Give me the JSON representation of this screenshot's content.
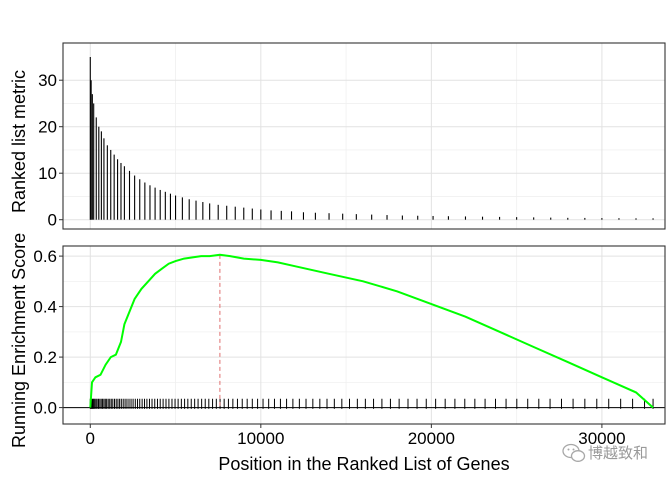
{
  "chart_data": {
    "type": "gsea",
    "xlabel": "Position in the Ranked List of Genes",
    "ylabel_top": "Ranked list metric",
    "ylabel_bottom": "Running Enrichment Score",
    "xlim": [
      -1600,
      33700
    ],
    "x_ticks": [
      0,
      10000,
      20000,
      30000
    ],
    "x_tick_labels": [
      "0",
      "10000",
      "20000",
      "30000"
    ],
    "grid": true,
    "legend": "none",
    "panels": [
      {
        "id": "ranked-metric",
        "type": "bar",
        "ylabel": "Ranked list metric",
        "ylim": [
          -2,
          38
        ],
        "y_ticks": [
          0,
          10,
          20,
          30
        ],
        "y_tick_labels": [
          "0",
          "10",
          "20",
          "30"
        ],
        "color": "#000000",
        "series": [
          {
            "x": [
              0,
              50,
              120,
              200,
              350,
              500,
              650,
              800,
              1000,
              1200,
              1400,
              1600,
              1800,
              2000,
              2300,
              2600,
              2900,
              3200,
              3500,
              3800,
              4100,
              4400,
              4700,
              5000,
              5400,
              5800,
              6200,
              6600,
              7000,
              7500,
              8000,
              8500,
              9000,
              9500,
              10000,
              10600,
              11200,
              11800,
              12500,
              13200,
              14000,
              14800,
              15600,
              16500,
              17400,
              18300,
              19200,
              20100,
              21000,
              22000,
              23000,
              24000,
              25000,
              26000,
              27000,
              28000,
              29000,
              30000,
              31000,
              32000,
              33000
            ],
            "values": [
              35,
              30,
              27,
              25,
              22,
              20,
              19,
              17.5,
              16,
              15,
              14,
              13,
              12.2,
              11.5,
              10.5,
              9.5,
              8.7,
              8,
              7.4,
              6.9,
              6.4,
              6,
              5.6,
              5.2,
              4.8,
              4.4,
              4.1,
              3.8,
              3.5,
              3.2,
              3,
              2.8,
              2.6,
              2.4,
              2.2,
              2,
              1.9,
              1.8,
              1.6,
              1.5,
              1.4,
              1.3,
              1.2,
              1.1,
              1,
              0.9,
              0.85,
              0.8,
              0.75,
              0.7,
              0.65,
              0.6,
              0.55,
              0.5,
              0.45,
              0.4,
              0.38,
              0.35,
              0.33,
              0.3,
              0.3
            ]
          }
        ]
      },
      {
        "id": "running-enrichment",
        "type": "line",
        "ylabel": "Running Enrichment Score",
        "ylim": [
          -0.065,
          0.64
        ],
        "y_ticks": [
          0,
          0.2,
          0.4,
          0.6
        ],
        "y_tick_labels": [
          "0.0",
          "0.2",
          "0.4",
          "0.6"
        ],
        "series": [
          {
            "color": "#00ff00",
            "x": [
              0,
              100,
              300,
              600,
              900,
              1200,
              1500,
              1800,
              2000,
              2300,
              2600,
              3000,
              3400,
              3800,
              4200,
              4600,
              5000,
              5500,
              6000,
              6500,
              7000,
              7600,
              8200,
              9000,
              10000,
              11000,
              12000,
              14000,
              16000,
              18000,
              20000,
              22000,
              24000,
              26000,
              28000,
              30000,
              32000,
              33000
            ],
            "values": [
              0,
              0.1,
              0.12,
              0.13,
              0.17,
              0.2,
              0.21,
              0.26,
              0.33,
              0.38,
              0.43,
              0.47,
              0.5,
              0.53,
              0.55,
              0.57,
              0.58,
              0.59,
              0.595,
              0.6,
              0.6,
              0.605,
              0.6,
              0.59,
              0.585,
              0.575,
              0.56,
              0.53,
              0.5,
              0.46,
              0.41,
              0.36,
              0.3,
              0.24,
              0.18,
              0.12,
              0.06,
              0
            ]
          }
        ],
        "reference_lines": {
          "horizontal_y": 0,
          "vertical_x": 7600,
          "vertical_color": "#e07070"
        },
        "hits": {
          "y_range": [
            -0.005,
            0.035
          ],
          "positions": [
            0,
            50,
            100,
            150,
            200,
            260,
            330,
            400,
            480,
            560,
            640,
            720,
            800,
            880,
            960,
            1050,
            1140,
            1230,
            1320,
            1420,
            1520,
            1620,
            1720,
            1820,
            1930,
            2040,
            2150,
            2270,
            2390,
            2510,
            2640,
            2770,
            2900,
            3040,
            3180,
            3320,
            3470,
            3620,
            3780,
            3940,
            4100,
            4270,
            4440,
            4610,
            4790,
            4970,
            5150,
            5340,
            5530,
            5720,
            5920,
            6120,
            6320,
            6530,
            6740,
            6950,
            7170,
            7390,
            7610,
            7850,
            8100,
            8360,
            8630,
            8910,
            9200,
            9500,
            9810,
            10130,
            10460,
            10800,
            11150,
            11510,
            11880,
            12260,
            12650,
            13050,
            13460,
            13880,
            14310,
            14750,
            15200,
            15660,
            16130,
            16610,
            17100,
            17600,
            18110,
            18630,
            19160,
            19700,
            20250,
            20810,
            21380,
            21960,
            22550,
            23150,
            23760,
            24380,
            25010,
            25650,
            26300,
            26960,
            27630,
            28310,
            29000,
            29700,
            30400,
            31100,
            31800,
            32500,
            33000
          ]
        }
      }
    ]
  },
  "watermark": {
    "text": "博越致和",
    "icon": "wechat-icon"
  }
}
